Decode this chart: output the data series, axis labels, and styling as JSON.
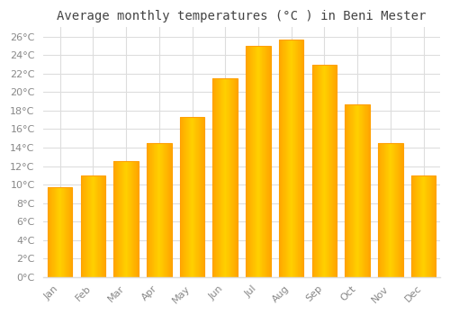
{
  "title": "Average monthly temperatures (°C ) in Beni Mester",
  "months": [
    "Jan",
    "Feb",
    "Mar",
    "Apr",
    "May",
    "Jun",
    "Jul",
    "Aug",
    "Sep",
    "Oct",
    "Nov",
    "Dec"
  ],
  "values": [
    9.7,
    11.0,
    12.5,
    14.5,
    17.3,
    21.5,
    25.0,
    25.7,
    23.0,
    18.7,
    14.5,
    11.0
  ],
  "bar_color_left": "#FFA500",
  "bar_color_center": "#FFD000",
  "background_color": "#FFFFFF",
  "plot_bg_color": "#FFFFFF",
  "grid_color": "#DDDDDD",
  "ylim": [
    0,
    27
  ],
  "ytick_step": 2,
  "title_fontsize": 10,
  "tick_fontsize": 8,
  "tick_color": "#888888",
  "label_color": "#888888",
  "title_color": "#444444",
  "bar_width": 0.75
}
